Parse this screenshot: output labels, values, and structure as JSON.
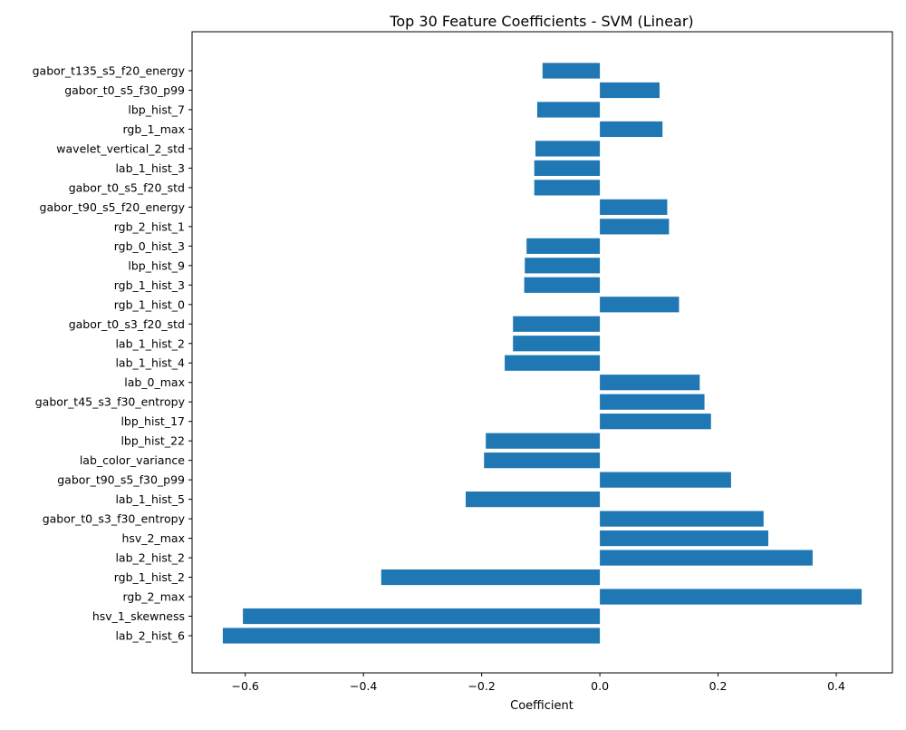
{
  "chart_data": {
    "type": "bar",
    "orientation": "horizontal",
    "title": "Top 30 Feature Coefficients - SVM (Linear)",
    "xlabel": "Coefficient",
    "ylabel": "",
    "xlim": [
      -0.69,
      0.495
    ],
    "xticks": [
      -0.6,
      -0.4,
      -0.2,
      0.0,
      0.2,
      0.4
    ],
    "xtick_labels": [
      "−0.6",
      "−0.4",
      "−0.2",
      "0.0",
      "0.2",
      "0.4"
    ],
    "grid": false,
    "bar_color": "#1f77b4",
    "categories": [
      "gabor_t135_s5_f20_energy",
      "gabor_t0_s5_f30_p99",
      "lbp_hist_7",
      "rgb_1_max",
      "wavelet_vertical_2_std",
      "lab_1_hist_3",
      "gabor_t0_s5_f20_std",
      "gabor_t90_s5_f20_energy",
      "rgb_2_hist_1",
      "rgb_0_hist_3",
      "lbp_hist_9",
      "rgb_1_hist_3",
      "rgb_1_hist_0",
      "gabor_t0_s3_f20_std",
      "lab_1_hist_2",
      "lab_1_hist_4",
      "lab_0_max",
      "gabor_t45_s3_f30_entropy",
      "lbp_hist_17",
      "lbp_hist_22",
      "lab_color_variance",
      "gabor_t90_s5_f30_p99",
      "lab_1_hist_5",
      "gabor_t0_s3_f30_entropy",
      "hsv_2_max",
      "lab_2_hist_2",
      "rgb_1_hist_2",
      "rgb_2_max",
      "hsv_1_skewness",
      "lab_2_hist_6"
    ],
    "values": [
      -0.097,
      0.101,
      -0.106,
      0.106,
      -0.109,
      -0.111,
      -0.111,
      0.114,
      0.117,
      -0.124,
      -0.127,
      -0.128,
      0.134,
      -0.147,
      -0.147,
      -0.161,
      0.169,
      0.177,
      0.188,
      -0.193,
      -0.196,
      0.222,
      -0.227,
      0.277,
      0.285,
      0.36,
      -0.37,
      0.443,
      -0.604,
      -0.638
    ]
  }
}
